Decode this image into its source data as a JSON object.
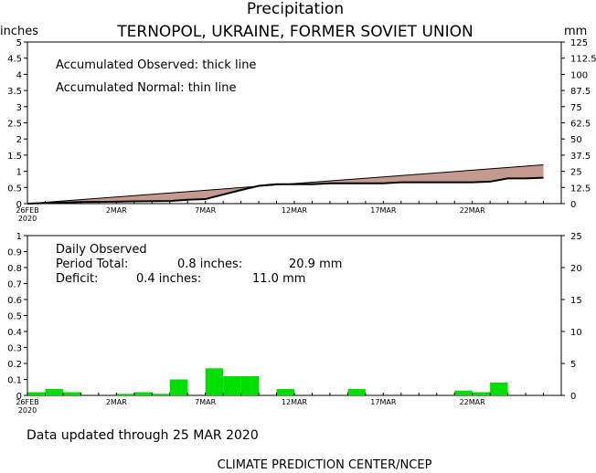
{
  "header": {
    "title": "Precipitation",
    "subtitle": "TERNOPOL, UKRAINE, FORMER SOVIET UNION",
    "left_unit": "inches",
    "right_unit": "mm"
  },
  "top_panel": {
    "legend_observed": "Accumulated Observed: thick line",
    "legend_normal": "Accumulated Normal: thin line"
  },
  "bottom_panel": {
    "label_daily": "Daily Observed",
    "label_total": "Period Total:",
    "total_in": "0.8 inches:",
    "total_mm": "20.9 mm",
    "label_deficit": "Deficit:",
    "deficit_in": "0.4 inches:",
    "deficit_mm": "11.0 mm"
  },
  "footer": {
    "updated": "Data updated through 25 MAR 2020",
    "credit": "CLIMATE PREDICTION CENTER/NCEP"
  },
  "colors": {
    "deficit_fill": "#c49a8f",
    "bars": "#00e000"
  },
  "chart_data": [
    {
      "type": "area",
      "x_ticks": [
        "26FEB",
        "2MAR",
        "7MAR",
        "12MAR",
        "17MAR",
        "22MAR"
      ],
      "x_ticks_year": "2020",
      "x_tick_days": [
        0,
        5,
        10,
        15,
        20,
        25
      ],
      "xlim": [
        0,
        30
      ],
      "ylim": [
        0,
        5
      ],
      "y_ticks": [
        "0",
        "0.5",
        "1",
        "1.5",
        "2",
        "2.5",
        "3",
        "3.5",
        "4",
        "4.5",
        "5"
      ],
      "y2lim": [
        0,
        125
      ],
      "y2_ticks": [
        "0",
        "12.5",
        "25",
        "37.5",
        "50",
        "62.5",
        "75",
        "87.5",
        "100",
        "112.5",
        "125"
      ],
      "series": [
        {
          "name": "Accumulated Observed",
          "x": [
            0,
            3,
            5,
            6,
            8,
            9,
            10,
            11,
            12,
            13,
            14,
            15,
            16,
            17,
            18,
            19,
            20,
            21,
            22,
            23,
            24,
            25,
            26,
            27,
            28,
            29
          ],
          "values": [
            0.0,
            0.05,
            0.06,
            0.07,
            0.08,
            0.12,
            0.14,
            0.28,
            0.42,
            0.55,
            0.6,
            0.6,
            0.6,
            0.63,
            0.63,
            0.63,
            0.63,
            0.66,
            0.66,
            0.66,
            0.66,
            0.66,
            0.68,
            0.78,
            0.78,
            0.8
          ]
        },
        {
          "name": "Accumulated Normal",
          "x": [
            0,
            29
          ],
          "values": [
            0.0,
            1.2
          ]
        }
      ]
    },
    {
      "type": "bar",
      "x_ticks": [
        "26FEB",
        "2MAR",
        "7MAR",
        "12MAR",
        "17MAR",
        "22MAR"
      ],
      "x_ticks_year": "2020",
      "x_tick_days": [
        0,
        5,
        10,
        15,
        20,
        25
      ],
      "xlim": [
        0,
        30
      ],
      "ylim": [
        0,
        1
      ],
      "y_ticks": [
        "0",
        "0.1",
        "0.2",
        "0.3",
        "0.4",
        "0.5",
        "0.6",
        "0.7",
        "0.8",
        "0.9",
        "1"
      ],
      "y2lim": [
        0,
        25
      ],
      "y2_ticks": [
        "0",
        "5",
        "10",
        "15",
        "20",
        "25"
      ],
      "x": [
        0,
        1,
        2,
        5,
        6,
        7,
        8,
        10,
        11,
        12,
        14,
        18,
        24,
        25,
        26
      ],
      "values": [
        0.02,
        0.04,
        0.02,
        0.01,
        0.02,
        0.01,
        0.1,
        0.17,
        0.12,
        0.12,
        0.04,
        0.04,
        0.03,
        0.02,
        0.08
      ]
    }
  ]
}
